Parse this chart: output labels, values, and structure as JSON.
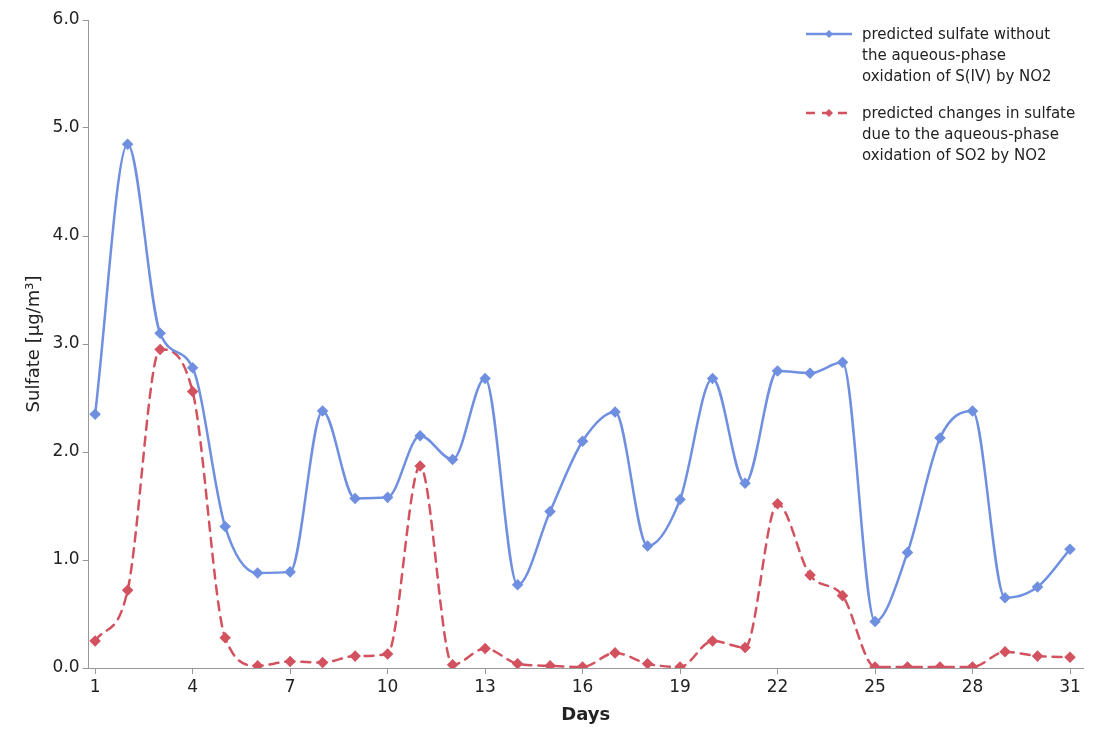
{
  "chart_data": {
    "type": "line",
    "xlabel": "Days",
    "ylabel": "Sulfate [μg/m³]",
    "x": [
      1,
      2,
      3,
      4,
      5,
      6,
      7,
      8,
      9,
      10,
      11,
      12,
      13,
      14,
      15,
      16,
      17,
      18,
      19,
      20,
      21,
      22,
      23,
      24,
      25,
      26,
      27,
      28,
      29,
      30,
      31
    ],
    "xlim": [
      0.8,
      31.4
    ],
    "xticks": [
      1,
      4,
      7,
      10,
      13,
      16,
      19,
      22,
      25,
      28,
      31
    ],
    "ylim": [
      0,
      6
    ],
    "yticks": [
      {
        "value": 0,
        "label": "0.0"
      },
      {
        "value": 1,
        "label": "1.0"
      },
      {
        "value": 2,
        "label": "2.0"
      },
      {
        "value": 3,
        "label": "3.0"
      },
      {
        "value": 4,
        "label": "4.0"
      },
      {
        "value": 5,
        "label": "5.0"
      },
      {
        "value": 6,
        "label": "6.0"
      }
    ],
    "grid": false,
    "legend": "top right",
    "marker": "diamond",
    "series": [
      {
        "name": "predicted sulfate without the aqueous-phase oxidation of S(IV) by NO2",
        "color": "#6f8fe0",
        "line_style": "solid",
        "values": [
          2.35,
          4.85,
          3.1,
          2.78,
          1.31,
          0.88,
          0.89,
          2.38,
          1.57,
          1.58,
          2.15,
          1.93,
          2.68,
          0.77,
          1.45,
          2.1,
          2.37,
          1.13,
          1.56,
          2.68,
          1.71,
          2.75,
          2.73,
          2.83,
          0.43,
          1.07,
          2.13,
          2.38,
          0.65,
          0.75,
          1.1
        ]
      },
      {
        "name": "predicted changes in sulfate due to the aqueous-phase oxidation of SO2 by NO2",
        "color": "#d3525f",
        "line_style": "dashed",
        "values": [
          0.25,
          0.72,
          2.95,
          2.56,
          0.28,
          0.02,
          0.06,
          0.05,
          0.11,
          0.13,
          1.87,
          0.03,
          0.18,
          0.04,
          0.02,
          0.01,
          0.14,
          0.04,
          0.01,
          0.25,
          0.19,
          1.52,
          0.86,
          0.67,
          0.01,
          0.01,
          0.01,
          0.01,
          0.15,
          0.11,
          0.1
        ]
      }
    ]
  }
}
